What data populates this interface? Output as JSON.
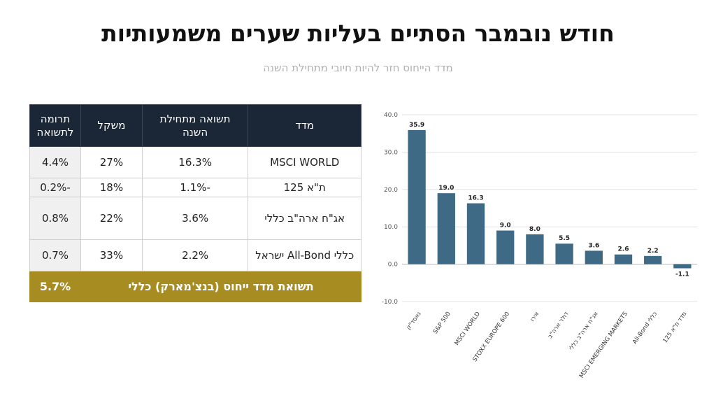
{
  "page": {
    "title": "חודש נובמבר הסתיים בעליות שערים משמעותיות",
    "subtitle": "מדד הייחוס חזר להיות חיובי מתחילת השנה"
  },
  "table": {
    "headers": {
      "index": "מדד",
      "ytd_return": "תשואה מתחילת השנה",
      "weight": "משקל",
      "contribution": "תרומה לתשואה"
    },
    "rows": [
      {
        "index": "MSCI WORLD",
        "ytd_return": "16.3%",
        "weight": "27%",
        "contribution": "4.4%"
      },
      {
        "index": "ת\"א 125",
        "ytd_return": "-1.1%",
        "weight": "18%",
        "contribution": "-0.2%"
      },
      {
        "index": "אג\"ח ארה\"ב כללי",
        "ytd_return": "3.6%",
        "weight": "22%",
        "contribution": "0.8%"
      },
      {
        "index": "כללי All-Bond ישראל",
        "ytd_return": "2.2%",
        "weight": "33%",
        "contribution": "0.7%"
      }
    ],
    "total": {
      "label": "תשואת מדד ייחוס (בנצ'מארק) כללי",
      "value": "5.7%"
    }
  },
  "chart_data": {
    "type": "bar",
    "categories": [
      "נאסד\"ק",
      "S&P 500",
      "MSCI WORLD",
      "STOXX EUROPE 600",
      "אירו",
      "דולר ארה\"ב",
      "אג\"ח ארה\"ב כללי",
      "MSCI EMERGING MARKETS",
      "All-Bond כללי",
      "מדד ת\"א 125"
    ],
    "values": [
      35.9,
      19.0,
      16.3,
      9.0,
      8.0,
      5.5,
      3.6,
      2.6,
      2.2,
      -1.1
    ],
    "value_labels": [
      "35.9",
      "19.0",
      "16.3",
      "9.0",
      "8.0",
      "5.5",
      "3.6",
      "2.6",
      "2.2",
      "-1.1"
    ],
    "y_ticks": [
      "40.0",
      "30.0",
      "20.0",
      "10.0",
      "0.0",
      "-10.0"
    ],
    "ylim": [
      -10,
      40
    ],
    "grid": true,
    "bar_color": "#3f6a85",
    "title": "",
    "xlabel": "",
    "ylabel": ""
  }
}
